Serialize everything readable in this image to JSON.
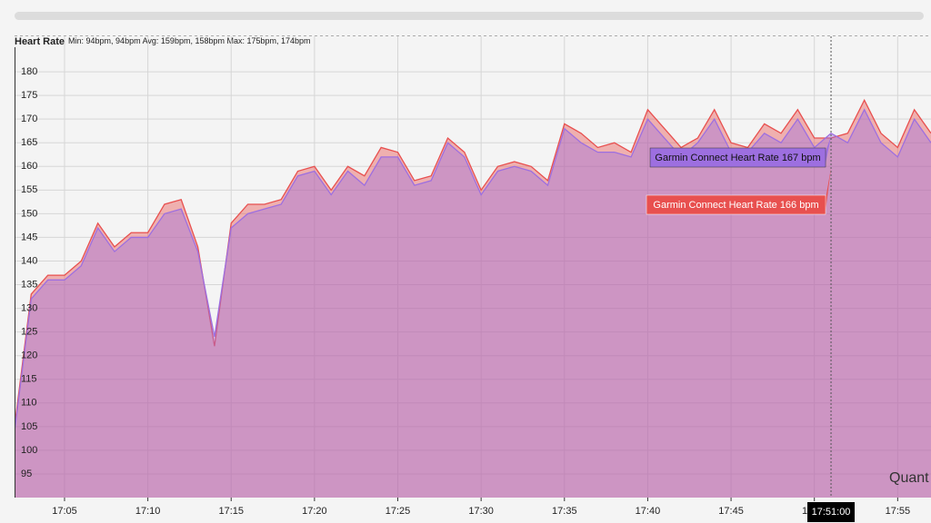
{
  "chart_data": {
    "type": "area",
    "title": "Heart Rate",
    "subtitle": "Min: 94bpm, 94bpm Avg: 159bpm, 158bpm Max: 175bpm, 174bpm",
    "x": [
      "17:02",
      "17:03",
      "17:04",
      "17:05",
      "17:06",
      "17:07",
      "17:08",
      "17:09",
      "17:10",
      "17:11",
      "17:12",
      "17:13",
      "17:14",
      "17:15",
      "17:16",
      "17:17",
      "17:18",
      "17:19",
      "17:20",
      "17:21",
      "17:22",
      "17:23",
      "17:24",
      "17:25",
      "17:26",
      "17:27",
      "17:28",
      "17:29",
      "17:30",
      "17:31",
      "17:32",
      "17:33",
      "17:34",
      "17:35",
      "17:36",
      "17:37",
      "17:38",
      "17:39",
      "17:40",
      "17:41",
      "17:42",
      "17:43",
      "17:44",
      "17:45",
      "17:46",
      "17:47",
      "17:48",
      "17:49",
      "17:50",
      "17:51",
      "17:52",
      "17:53",
      "17:54",
      "17:55",
      "17:56",
      "17:57"
    ],
    "series": [
      {
        "name": "Garmin Connect Heart Rate",
        "color": "#e8504f",
        "values": [
          105,
          133,
          137,
          137,
          140,
          148,
          143,
          146,
          146,
          152,
          153,
          143,
          122,
          148,
          152,
          152,
          153,
          159,
          160,
          155,
          160,
          158,
          164,
          163,
          157,
          158,
          166,
          163,
          155,
          160,
          161,
          160,
          157,
          169,
          167,
          164,
          165,
          163,
          172,
          168,
          164,
          166,
          172,
          165,
          164,
          169,
          167,
          172,
          166,
          166,
          167,
          174,
          167,
          164,
          172,
          167
        ]
      },
      {
        "name": "Garmin Connect Heart Rate",
        "color": "#9d6fe0",
        "values": [
          104,
          132,
          136,
          136,
          139,
          147,
          142,
          145,
          145,
          150,
          151,
          142,
          124,
          147,
          150,
          151,
          152,
          158,
          159,
          154,
          159,
          156,
          162,
          162,
          156,
          157,
          165,
          162,
          154,
          159,
          160,
          159,
          156,
          168,
          165,
          163,
          163,
          162,
          170,
          166,
          162,
          165,
          170,
          163,
          163,
          167,
          165,
          170,
          164,
          167,
          165,
          172,
          165,
          162,
          170,
          165
        ]
      }
    ],
    "xlim": [
      "17:02",
      "17:57"
    ],
    "xticks": [
      "17:05",
      "17:10",
      "17:15",
      "17:20",
      "17:25",
      "17:30",
      "17:35",
      "17:40",
      "17:45",
      "17:50",
      "17:55"
    ],
    "ylim": [
      90,
      187.5
    ],
    "yticks": [
      95,
      100,
      105,
      110,
      115,
      120,
      125,
      130,
      135,
      140,
      145,
      150,
      155,
      160,
      165,
      170,
      175,
      180
    ],
    "grid": true,
    "cursor": "17:51:00",
    "tooltips": [
      {
        "text": "Garmin Connect Heart Rate 167 bpm",
        "series": 1
      },
      {
        "text": "Garmin Connect Heart Rate 166 bpm",
        "series": 0
      }
    ],
    "watermark": "Quant"
  }
}
